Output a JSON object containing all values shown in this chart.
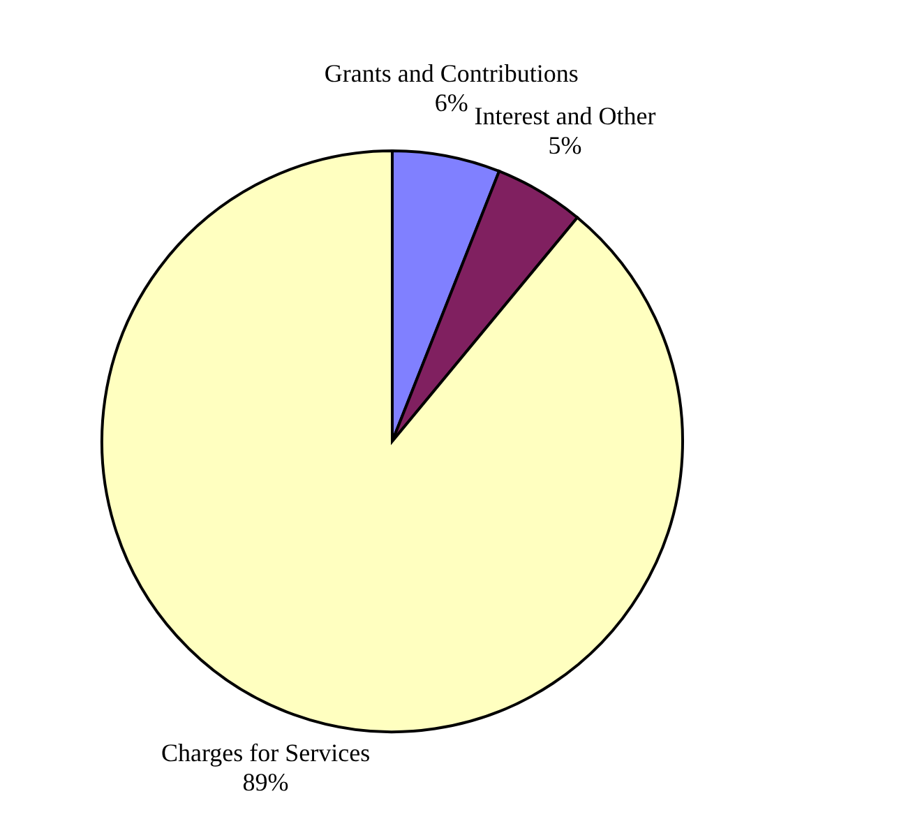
{
  "chart_data": {
    "type": "pie",
    "categories": [
      "Grants and Contributions",
      "Interest and Other",
      "Charges for Services"
    ],
    "values": [
      6,
      5,
      89
    ],
    "colors": [
      "#8080ff",
      "#802060",
      "#ffffc0"
    ],
    "value_labels": [
      "6%",
      "5%",
      "89%"
    ]
  }
}
